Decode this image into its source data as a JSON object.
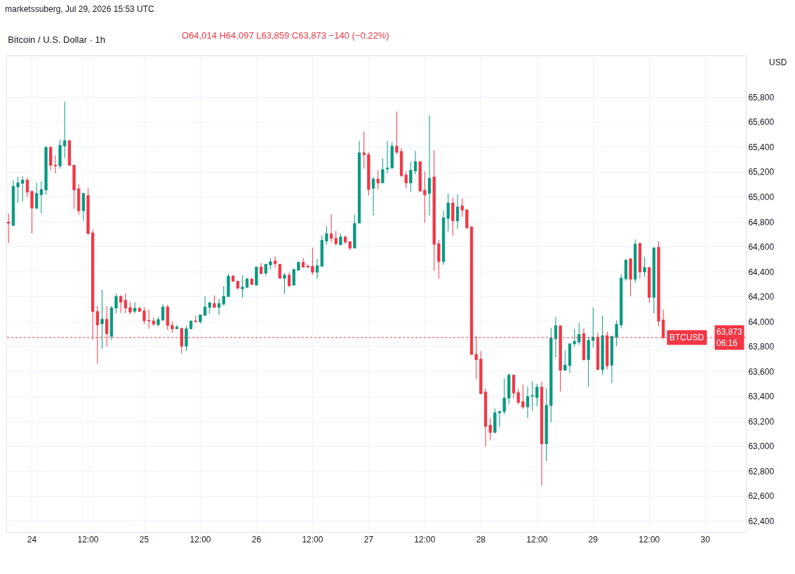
{
  "chart_data": {
    "type": "candlestick",
    "title": "Bitcoin / U.S. Dollar · 1h",
    "subtitle": "O64,014 H64,097 L63,859 C63,873 −140 (−0.22%)",
    "annotations": [
      "marketssuberg, Jul 29, 2026 15:53 UTC",
      "USD",
      "63,873",
      "06:16"
    ],
    "x": [
      "2026-07-23T19:00",
      "2026-07-23T20:00",
      "2026-07-23T21:00",
      "2026-07-23T22:00",
      "2026-07-23T23:00",
      "2026-07-24T00:00",
      "2026-07-24T01:00",
      "2026-07-24T02:00",
      "2026-07-24T03:00",
      "2026-07-24T04:00",
      "2026-07-24T05:00",
      "2026-07-24T06:00",
      "2026-07-24T07:00",
      "2026-07-24T08:00",
      "2026-07-24T09:00",
      "2026-07-24T10:00",
      "2026-07-24T11:00",
      "2026-07-24T12:00",
      "2026-07-24T13:00",
      "2026-07-24T14:00",
      "2026-07-24T15:00",
      "2026-07-24T16:00",
      "2026-07-24T17:00",
      "2026-07-24T18:00",
      "2026-07-24T19:00",
      "2026-07-24T20:00",
      "2026-07-24T21:00",
      "2026-07-24T22:00",
      "2026-07-24T23:00",
      "2026-07-25T00:00",
      "2026-07-25T01:00",
      "2026-07-25T02:00",
      "2026-07-25T03:00",
      "2026-07-25T04:00",
      "2026-07-25T05:00",
      "2026-07-25T06:00",
      "2026-07-25T07:00",
      "2026-07-25T08:00",
      "2026-07-25T09:00",
      "2026-07-25T10:00",
      "2026-07-25T11:00",
      "2026-07-25T12:00",
      "2026-07-25T13:00",
      "2026-07-25T14:00",
      "2026-07-25T15:00",
      "2026-07-25T16:00",
      "2026-07-25T17:00",
      "2026-07-25T18:00",
      "2026-07-25T19:00",
      "2026-07-25T20:00",
      "2026-07-25T21:00",
      "2026-07-25T22:00",
      "2026-07-25T23:00",
      "2026-07-26T00:00",
      "2026-07-26T01:00",
      "2026-07-26T02:00",
      "2026-07-26T03:00",
      "2026-07-26T04:00",
      "2026-07-26T05:00",
      "2026-07-26T06:00",
      "2026-07-26T07:00",
      "2026-07-26T08:00",
      "2026-07-26T09:00",
      "2026-07-26T10:00",
      "2026-07-26T11:00",
      "2026-07-26T12:00",
      "2026-07-26T13:00",
      "2026-07-26T14:00",
      "2026-07-26T15:00",
      "2026-07-26T16:00",
      "2026-07-26T17:00",
      "2026-07-26T18:00",
      "2026-07-26T19:00",
      "2026-07-26T20:00",
      "2026-07-26T21:00",
      "2026-07-26T22:00",
      "2026-07-26T23:00",
      "2026-07-27T00:00",
      "2026-07-27T01:00",
      "2026-07-27T02:00",
      "2026-07-27T03:00",
      "2026-07-27T04:00",
      "2026-07-27T05:00",
      "2026-07-27T06:00",
      "2026-07-27T07:00",
      "2026-07-27T08:00",
      "2026-07-27T09:00",
      "2026-07-27T10:00",
      "2026-07-27T11:00",
      "2026-07-27T12:00",
      "2026-07-27T13:00",
      "2026-07-27T14:00",
      "2026-07-27T15:00",
      "2026-07-27T16:00",
      "2026-07-27T17:00",
      "2026-07-27T18:00",
      "2026-07-27T19:00",
      "2026-07-27T20:00",
      "2026-07-27T21:00",
      "2026-07-27T22:00",
      "2026-07-27T23:00",
      "2026-07-28T00:00",
      "2026-07-28T01:00",
      "2026-07-28T02:00",
      "2026-07-28T03:00",
      "2026-07-28T04:00",
      "2026-07-28T05:00",
      "2026-07-28T06:00",
      "2026-07-28T07:00",
      "2026-07-28T08:00",
      "2026-07-28T09:00",
      "2026-07-28T10:00",
      "2026-07-28T11:00",
      "2026-07-28T12:00",
      "2026-07-28T13:00",
      "2026-07-28T14:00",
      "2026-07-28T15:00",
      "2026-07-28T16:00",
      "2026-07-28T17:00",
      "2026-07-28T18:00",
      "2026-07-28T19:00",
      "2026-07-28T20:00",
      "2026-07-28T21:00",
      "2026-07-28T22:00",
      "2026-07-28T23:00",
      "2026-07-29T00:00",
      "2026-07-29T01:00",
      "2026-07-29T02:00",
      "2026-07-29T03:00",
      "2026-07-29T04:00",
      "2026-07-29T05:00",
      "2026-07-29T06:00",
      "2026-07-29T07:00",
      "2026-07-29T08:00",
      "2026-07-29T09:00",
      "2026-07-29T10:00",
      "2026-07-29T11:00",
      "2026-07-29T12:00",
      "2026-07-29T13:00",
      "2026-07-29T14:00",
      "2026-07-29T15:00"
    ],
    "ohlc": [
      [
        64799,
        64867,
        64629,
        64790
      ],
      [
        64772,
        65135,
        64770,
        65085
      ],
      [
        65082,
        65162,
        64955,
        65112
      ],
      [
        65110,
        65167,
        64965,
        65135
      ],
      [
        65135,
        65157,
        64996,
        65040
      ],
      [
        65044,
        65055,
        64708,
        64912
      ],
      [
        64912,
        65114,
        64901,
        65028
      ],
      [
        65019,
        65125,
        64869,
        65060
      ],
      [
        65057,
        65409,
        65019,
        65398
      ],
      [
        65398,
        65409,
        65217,
        65255
      ],
      [
        65255,
        65334,
        65191,
        65250
      ],
      [
        65250,
        65462,
        65228,
        65414
      ],
      [
        65410,
        65764,
        65314,
        65452
      ],
      [
        65452,
        65455,
        65250,
        65255
      ],
      [
        65255,
        65260,
        64906,
        65057
      ],
      [
        65066,
        65103,
        64858,
        64890
      ],
      [
        64890,
        65035,
        64810,
        65028
      ],
      [
        65012,
        65071,
        64697,
        64708
      ],
      [
        64712,
        64739,
        63856,
        64081
      ],
      [
        64081,
        64126,
        63663,
        63974
      ],
      [
        63984,
        64256,
        63781,
        64020
      ],
      [
        64020,
        64126,
        63799,
        63904
      ],
      [
        63883,
        64126,
        63852,
        64111
      ],
      [
        64110,
        64224,
        64067,
        64202
      ],
      [
        64202,
        64213,
        64070,
        64156
      ],
      [
        64172,
        64226,
        64070,
        64110
      ],
      [
        64113,
        64156,
        64060,
        64077
      ],
      [
        64083,
        64156,
        64067,
        64108
      ],
      [
        64108,
        64118,
        64077,
        64083
      ],
      [
        64086,
        64118,
        63981,
        64008
      ],
      [
        64011,
        64097,
        63943,
        64008
      ],
      [
        64006,
        64033,
        63965,
        63981
      ],
      [
        63976,
        64038,
        63963,
        64017
      ],
      [
        64013,
        64140,
        64013,
        64118
      ],
      [
        64118,
        64135,
        63933,
        63970
      ],
      [
        63970,
        64000,
        63911,
        63943
      ],
      [
        63943,
        63974,
        63943,
        63958
      ],
      [
        63947,
        63947,
        63745,
        63804
      ],
      [
        63804,
        63968,
        63766,
        63943
      ],
      [
        63943,
        64006,
        63938,
        64006
      ],
      [
        64006,
        64049,
        63992,
        64002
      ],
      [
        64000,
        64054,
        63986,
        64054
      ],
      [
        64051,
        64204,
        64051,
        64118
      ],
      [
        64115,
        64158,
        64065,
        64152
      ],
      [
        64145,
        64210,
        64115,
        64115
      ],
      [
        64115,
        64183,
        64054,
        64145
      ],
      [
        64142,
        64285,
        64129,
        64204
      ],
      [
        64201,
        64386,
        64201,
        64365
      ],
      [
        64365,
        64376,
        64320,
        64324
      ],
      [
        64324,
        64328,
        64256,
        64270
      ],
      [
        64263,
        64370,
        64192,
        64277
      ],
      [
        64276,
        64352,
        64272,
        64342
      ],
      [
        64342,
        64352,
        64295,
        64299
      ],
      [
        64294,
        64438,
        64290,
        64438
      ],
      [
        64438,
        64470,
        64385,
        64385
      ],
      [
        64390,
        64460,
        64365,
        64460
      ],
      [
        64456,
        64513,
        64419,
        64481
      ],
      [
        64487,
        64524,
        64433,
        64465
      ],
      [
        64460,
        64460,
        64349,
        64349
      ],
      [
        64349,
        64390,
        64224,
        64374
      ],
      [
        64374,
        64395,
        64283,
        64288
      ],
      [
        64294,
        64424,
        64288,
        64419
      ],
      [
        64413,
        64481,
        64413,
        64476
      ],
      [
        64476,
        64513,
        64433,
        64438
      ],
      [
        64444,
        64460,
        64433,
        64438
      ],
      [
        64444,
        64594,
        64376,
        64397
      ],
      [
        64397,
        64503,
        64344,
        64449
      ],
      [
        64444,
        64692,
        64444,
        64653
      ],
      [
        64647,
        64765,
        64617,
        64706
      ],
      [
        64706,
        64862,
        64638,
        64669
      ],
      [
        64669,
        64728,
        64612,
        64626
      ],
      [
        64617,
        64706,
        64612,
        64679
      ],
      [
        64679,
        64690,
        64622,
        64638
      ],
      [
        64642,
        64642,
        64574,
        64590
      ],
      [
        64590,
        64857,
        64590,
        64787
      ],
      [
        64791,
        65450,
        64791,
        65354
      ],
      [
        65354,
        65525,
        65227,
        65340
      ],
      [
        65341,
        65359,
        65013,
        65061
      ],
      [
        65070,
        65161,
        64852,
        65145
      ],
      [
        65145,
        65215,
        65061,
        65113
      ],
      [
        65113,
        65311,
        65113,
        65220
      ],
      [
        65225,
        65450,
        65188,
        65232
      ],
      [
        65232,
        65440,
        65232,
        65408
      ],
      [
        65408,
        65686,
        65343,
        65359
      ],
      [
        65365,
        65391,
        65161,
        65172
      ],
      [
        65177,
        65204,
        65070,
        65113
      ],
      [
        65113,
        65284,
        65045,
        65215
      ],
      [
        65209,
        65370,
        65182,
        65284
      ],
      [
        65284,
        65284,
        65043,
        65048
      ],
      [
        65054,
        65204,
        64793,
        65018
      ],
      [
        65029,
        65654,
        64852,
        65150
      ],
      [
        65161,
        65375,
        64407,
        64621
      ],
      [
        64625,
        64657,
        64343,
        64482
      ],
      [
        64482,
        64893,
        64455,
        64834
      ],
      [
        64829,
        65027,
        64723,
        64952
      ],
      [
        64952,
        64995,
        64691,
        64809
      ],
      [
        64809,
        65021,
        64745,
        64920
      ],
      [
        64930,
        64989,
        64841,
        64895
      ],
      [
        64898,
        64898,
        64739,
        64755
      ],
      [
        64761,
        64761,
        63737,
        63737
      ],
      [
        63738,
        63888,
        63539,
        63696
      ],
      [
        63700,
        63764,
        63418,
        63423
      ],
      [
        63436,
        63464,
        62999,
        63160
      ],
      [
        63169,
        63228,
        63048,
        63112
      ],
      [
        63112,
        63303,
        63107,
        63269
      ],
      [
        63269,
        63285,
        63155,
        63280
      ],
      [
        63280,
        63545,
        63257,
        63387
      ],
      [
        63387,
        63587,
        63337,
        63571
      ],
      [
        63571,
        63577,
        63386,
        63428
      ],
      [
        63432,
        63464,
        63337,
        63353
      ],
      [
        63359,
        63496,
        63300,
        63316
      ],
      [
        63316,
        63480,
        63225,
        63400
      ],
      [
        63403,
        63523,
        63284,
        63407
      ],
      [
        63391,
        63502,
        63321,
        63475
      ],
      [
        63475,
        63518,
        62683,
        63021
      ],
      [
        63021,
        63464,
        62882,
        63328
      ],
      [
        63328,
        63952,
        63193,
        63868
      ],
      [
        63863,
        64038,
        63713,
        63968
      ],
      [
        63968,
        63968,
        63439,
        63611
      ],
      [
        63611,
        63770,
        63605,
        63652
      ],
      [
        63648,
        63823,
        63589,
        63823
      ],
      [
        63823,
        63943,
        63798,
        63841
      ],
      [
        63836,
        63990,
        63814,
        63898
      ],
      [
        63904,
        63947,
        63686,
        63696
      ],
      [
        63696,
        63877,
        63477,
        63850
      ],
      [
        63850,
        64113,
        63793,
        63877
      ],
      [
        63877,
        63915,
        63615,
        63615
      ],
      [
        63615,
        64049,
        63572,
        63888
      ],
      [
        63888,
        63920,
        63620,
        63647
      ],
      [
        63652,
        63883,
        63507,
        63883
      ],
      [
        63877,
        64011,
        63804,
        63979
      ],
      [
        63974,
        64381,
        63947,
        64349
      ],
      [
        64344,
        64499,
        64328,
        64494
      ],
      [
        64504,
        64510,
        64204,
        64340
      ],
      [
        64340,
        64660,
        64311,
        64622
      ],
      [
        64628,
        64633,
        64345,
        64399
      ],
      [
        64399,
        64521,
        64356,
        64435
      ],
      [
        64435,
        64435,
        64151,
        64194
      ],
      [
        64194,
        64601,
        64065,
        64590
      ],
      [
        64596,
        64644,
        63963,
        64006
      ],
      [
        64014,
        64097,
        63859,
        63873
      ]
    ],
    "colors": [
      "#f23645",
      "#089981",
      "#089981",
      "#089981",
      "#f23645",
      "#f23645",
      "#089981",
      "#089981",
      "#089981",
      "#f23645",
      "#f23645",
      "#089981",
      "#089981",
      "#f23645",
      "#f23645",
      "#f23645",
      "#089981",
      "#f23645",
      "#f23645",
      "#f23645",
      "#089981",
      "#f23645",
      "#089981",
      "#089981",
      "#f23645",
      "#f23645",
      "#f23645",
      "#089981",
      "#f23645",
      "#f23645",
      "#f23645",
      "#f23645",
      "#089981",
      "#089981",
      "#f23645",
      "#f23645",
      "#089981",
      "#f23645",
      "#089981",
      "#089981",
      "#f23645",
      "#089981",
      "#089981",
      "#089981",
      "#f23645",
      "#089981",
      "#089981",
      "#089981",
      "#f23645",
      "#f23645",
      "#089981",
      "#089981",
      "#f23645",
      "#089981",
      "#f23645",
      "#089981",
      "#089981",
      "#f23645",
      "#f23645",
      "#089981",
      "#f23645",
      "#089981",
      "#089981",
      "#f23645",
      "#f23645",
      "#f23645",
      "#089981",
      "#089981",
      "#089981",
      "#f23645",
      "#f23645",
      "#089981",
      "#f23645",
      "#f23645",
      "#089981",
      "#089981",
      "#f23645",
      "#f23645",
      "#089981",
      "#f23645",
      "#089981",
      "#089981",
      "#089981",
      "#f23645",
      "#f23645",
      "#f23645",
      "#089981",
      "#089981",
      "#f23645",
      "#f23645",
      "#089981",
      "#f23645",
      "#f23645",
      "#089981",
      "#089981",
      "#f23645",
      "#089981",
      "#f23645",
      "#f23645",
      "#f23645",
      "#f23645",
      "#f23645",
      "#f23645",
      "#f23645",
      "#089981",
      "#089981",
      "#089981",
      "#089981",
      "#f23645",
      "#f23645",
      "#f23645",
      "#089981",
      "#089981",
      "#089981",
      "#f23645",
      "#089981",
      "#089981",
      "#089981",
      "#f23645",
      "#089981",
      "#089981",
      "#089981",
      "#089981",
      "#f23645",
      "#089981",
      "#089981",
      "#f23645",
      "#089981",
      "#f23645",
      "#089981",
      "#089981",
      "#089981",
      "#089981",
      "#f23645",
      "#089981",
      "#f23645",
      "#089981",
      "#f23645",
      "#089981",
      "#f23645",
      "#f23645"
    ],
    "xlim": [
      "2026-07-23T18:40",
      "2026-07-30T08:40"
    ],
    "xticks": [
      {
        "value": "2026-07-24",
        "label": "24"
      },
      {
        "value": "2026-07-24T12:00",
        "label": "12:00"
      },
      {
        "value": "2026-07-25",
        "label": "25"
      },
      {
        "value": "2026-07-25T12:00",
        "label": "12:00"
      },
      {
        "value": "2026-07-26",
        "label": "26"
      },
      {
        "value": "2026-07-26T12:00",
        "label": "12:00"
      },
      {
        "value": "2026-07-27",
        "label": "27"
      },
      {
        "value": "2026-07-27T12:00",
        "label": "12:00"
      },
      {
        "value": "2026-07-28",
        "label": "28"
      },
      {
        "value": "2026-07-28T12:00",
        "label": "12:00"
      },
      {
        "value": "2026-07-29",
        "label": "29"
      },
      {
        "value": "2026-07-29T12:00",
        "label": "12:00"
      },
      {
        "value": "2026-07-30",
        "label": "30"
      }
    ],
    "ylim": [
      62314,
      66130
    ],
    "yticks": [
      {
        "value": 62400,
        "label": "62,400"
      },
      {
        "value": 62600,
        "label": "62,600"
      },
      {
        "value": 62800,
        "label": "62,800"
      },
      {
        "value": 63000,
        "label": "63,000"
      },
      {
        "value": 63200,
        "label": "63,200"
      },
      {
        "value": 63400,
        "label": "63,400"
      },
      {
        "value": 63600,
        "label": "63,600"
      },
      {
        "value": 63800,
        "label": "63,800"
      },
      {
        "value": 64000,
        "label": "64,000"
      },
      {
        "value": 64200,
        "label": "64,200"
      },
      {
        "value": 64400,
        "label": "64,400"
      },
      {
        "value": 64600,
        "label": "64,600"
      },
      {
        "value": 64800,
        "label": "64,800"
      },
      {
        "value": 65000,
        "label": "65,000"
      },
      {
        "value": 65200,
        "label": "65,200"
      },
      {
        "value": 65400,
        "label": "65,400"
      },
      {
        "value": 65600,
        "label": "65,600"
      },
      {
        "value": 65800,
        "label": "65,800"
      }
    ],
    "ref_lines": [
      {
        "axis": "y",
        "value": 63873,
        "label": "BTCUSD",
        "color": "#f23645",
        "line_style": "dotted"
      }
    ],
    "grid": true
  }
}
